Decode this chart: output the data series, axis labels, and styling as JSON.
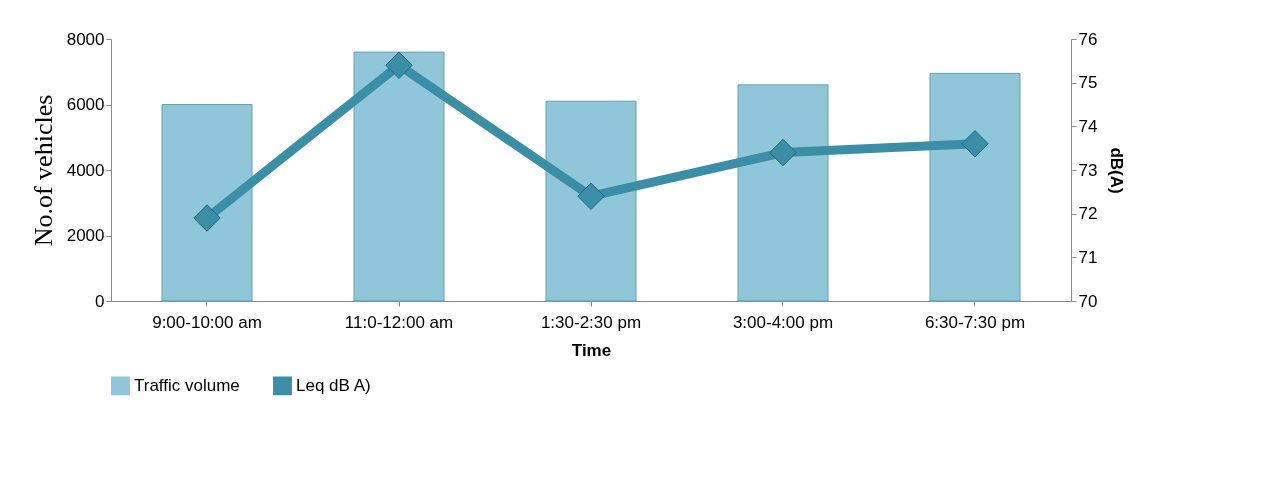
{
  "chart_data": {
    "type": "bar",
    "xlabel": "Time",
    "ylabel": "No.of vehicles",
    "y2label": "dB(A)",
    "categories": [
      "9:00-10:00 am",
      "11:0-12:00 am",
      "1:30-2:30 pm",
      "3:00-4:00 pm",
      "6:30-7:30 pm"
    ],
    "series": [
      {
        "name": "Traffic volume",
        "color": "#8fc6da",
        "values": [
          6000,
          7600,
          6100,
          6600,
          6950
        ]
      },
      {
        "name": "Leq dB A)",
        "type": "line",
        "axis": "y2",
        "color": "#3a8ea5",
        "marker": "diamond",
        "values": [
          71.9,
          75.4,
          72.4,
          73.4,
          73.6
        ]
      }
    ],
    "ylim": [
      0,
      8000
    ],
    "yticks": [
      0,
      2000,
      4000,
      6000,
      8000
    ],
    "y2lim": [
      70,
      76
    ],
    "y2ticks": [
      70,
      71,
      72,
      73,
      74,
      75,
      76
    ],
    "grid": false,
    "legend": "bottom"
  }
}
